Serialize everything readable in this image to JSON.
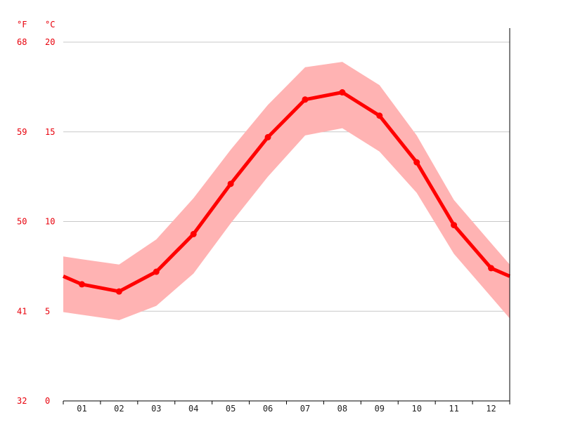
{
  "chart_data": {
    "type": "line",
    "unit_left": "°F",
    "unit_right": "°C",
    "categories": [
      "01",
      "02",
      "03",
      "04",
      "05",
      "06",
      "07",
      "08",
      "09",
      "10",
      "11",
      "12"
    ],
    "y_ticks_c": [
      0,
      5,
      10,
      15,
      20
    ],
    "y_ticks_f": [
      "32",
      "41",
      "50",
      "59",
      "68"
    ],
    "ylim": [
      0,
      20
    ],
    "grid": true,
    "series": [
      {
        "values": [
          6.5,
          6.1,
          7.2,
          9.3,
          12.1,
          14.7,
          16.8,
          17.2,
          15.9,
          13.3,
          9.8,
          7.4
        ]
      }
    ],
    "band_low": [
      4.8,
      4.5,
      5.3,
      7.1,
      9.9,
      12.5,
      14.8,
      15.2,
      13.9,
      11.6,
      8.2,
      5.8
    ],
    "band_high": [
      7.9,
      7.6,
      9.0,
      11.3,
      14.0,
      16.5,
      18.6,
      18.9,
      17.6,
      14.8,
      11.2,
      8.8
    ],
    "line_color": "#ff0000",
    "band_color": "#ffb3b3"
  }
}
